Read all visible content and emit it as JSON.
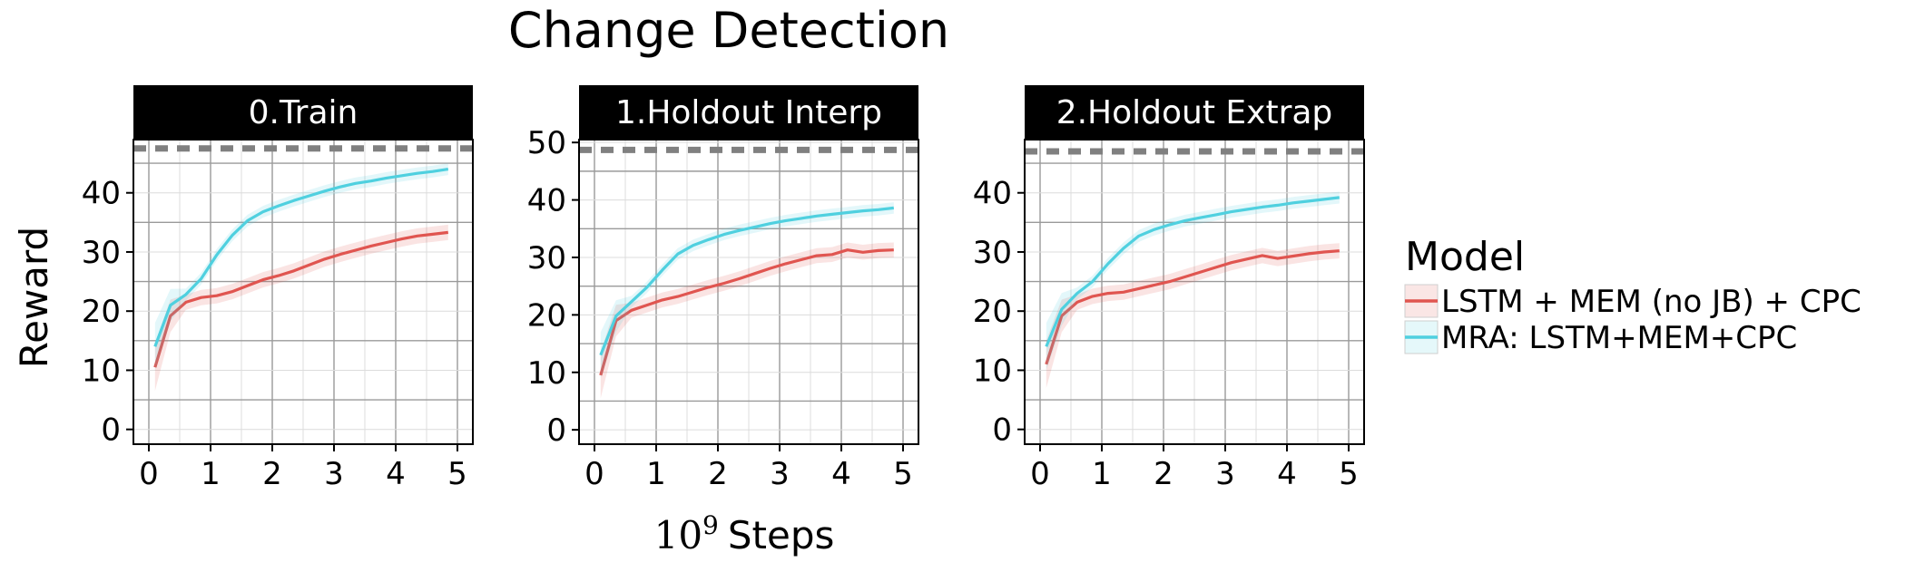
{
  "title": "Change Detection",
  "xlabel_base": "10",
  "xlabel_exp": "9",
  "xlabel_rest": "Steps",
  "ylabel": "Reward",
  "legend": {
    "title": "Model",
    "items": [
      {
        "label": "LSTM + MEM (no JB) + CPC",
        "color": "#e05550"
      },
      {
        "label": "MRA: LSTM+MEM+CPC",
        "color": "#4fd0df"
      }
    ]
  },
  "chart_data": {
    "type": "line",
    "title": "Change Detection",
    "xlabel": "10^9 Steps",
    "ylabel": "Reward",
    "legend_title": "Model",
    "legend_position": "right",
    "grid": true,
    "xlim": [
      -0.25,
      5.25
    ],
    "x_ticks": [
      0,
      1,
      2,
      3,
      4,
      5
    ],
    "panels": [
      {
        "title": "0.Train",
        "ylim": [
          -2.5,
          49
        ],
        "y_ticks": [
          0,
          10,
          20,
          30,
          40
        ],
        "reference_line": 47.5,
        "x": [
          0.1,
          0.35,
          0.6,
          0.85,
          1.1,
          1.35,
          1.6,
          1.85,
          2.1,
          2.35,
          2.6,
          2.85,
          3.1,
          3.35,
          3.6,
          3.85,
          4.1,
          4.35,
          4.6,
          4.85
        ],
        "series": [
          {
            "name": "LSTM + MEM (no JB) + CPC",
            "values": [
              10.5,
              19.2,
              21.5,
              22.3,
              22.6,
              23.3,
              24.3,
              25.3,
              26.0,
              26.8,
              27.8,
              28.8,
              29.6,
              30.3,
              31.0,
              31.6,
              32.2,
              32.7,
              33.0,
              33.3
            ]
          },
          {
            "name": "MRA: LSTM+MEM+CPC",
            "values": [
              14.0,
              21.0,
              22.8,
              25.5,
              29.5,
              32.8,
              35.3,
              36.8,
              37.8,
              38.7,
              39.5,
              40.3,
              41.0,
              41.6,
              42.0,
              42.5,
              42.9,
              43.3,
              43.6,
              44.0
            ]
          }
        ]
      },
      {
        "title": "1.Holdout Interp",
        "ylim": [
          -2.5,
          50.5
        ],
        "y_ticks": [
          0,
          10,
          20,
          30,
          40,
          50
        ],
        "reference_line": 48.7,
        "x": [
          0.1,
          0.35,
          0.6,
          0.85,
          1.1,
          1.35,
          1.6,
          1.85,
          2.1,
          2.35,
          2.6,
          2.85,
          3.1,
          3.35,
          3.6,
          3.85,
          4.1,
          4.35,
          4.6,
          4.85
        ],
        "series": [
          {
            "name": "LSTM + MEM (no JB) + CPC",
            "values": [
              9.5,
              19.0,
              20.8,
              21.7,
              22.6,
              23.2,
              24.0,
              24.8,
              25.5,
              26.3,
              27.2,
              28.1,
              28.9,
              29.6,
              30.3,
              30.5,
              31.3,
              30.9,
              31.2,
              31.3
            ]
          },
          {
            "name": "MRA: LSTM+MEM+CPC",
            "values": [
              13.0,
              19.8,
              22.3,
              24.8,
              27.8,
              30.6,
              32.1,
              33.1,
              34.0,
              34.7,
              35.3,
              35.9,
              36.4,
              36.8,
              37.2,
              37.5,
              37.8,
              38.1,
              38.3,
              38.6
            ]
          }
        ]
      },
      {
        "title": "2.Holdout Extrap",
        "ylim": [
          -2.5,
          49
        ],
        "y_ticks": [
          0,
          10,
          20,
          30,
          40
        ],
        "reference_line": 47.0,
        "x": [
          0.1,
          0.35,
          0.6,
          0.85,
          1.1,
          1.35,
          1.6,
          1.85,
          2.1,
          2.35,
          2.6,
          2.85,
          3.1,
          3.35,
          3.6,
          3.85,
          4.1,
          4.35,
          4.6,
          4.85
        ],
        "series": [
          {
            "name": "LSTM + MEM (no JB) + CPC",
            "values": [
              11.0,
              19.2,
              21.5,
              22.5,
              23.0,
              23.2,
              23.8,
              24.4,
              25.0,
              25.8,
              26.6,
              27.4,
              28.2,
              28.8,
              29.4,
              28.9,
              29.3,
              29.7,
              30.0,
              30.2
            ]
          },
          {
            "name": "MRA: LSTM+MEM+CPC",
            "values": [
              14.0,
              20.3,
              23.0,
              25.0,
              28.0,
              30.6,
              32.7,
              33.8,
              34.6,
              35.3,
              35.8,
              36.3,
              36.8,
              37.2,
              37.6,
              37.9,
              38.3,
              38.6,
              38.9,
              39.2
            ]
          }
        ]
      }
    ]
  }
}
